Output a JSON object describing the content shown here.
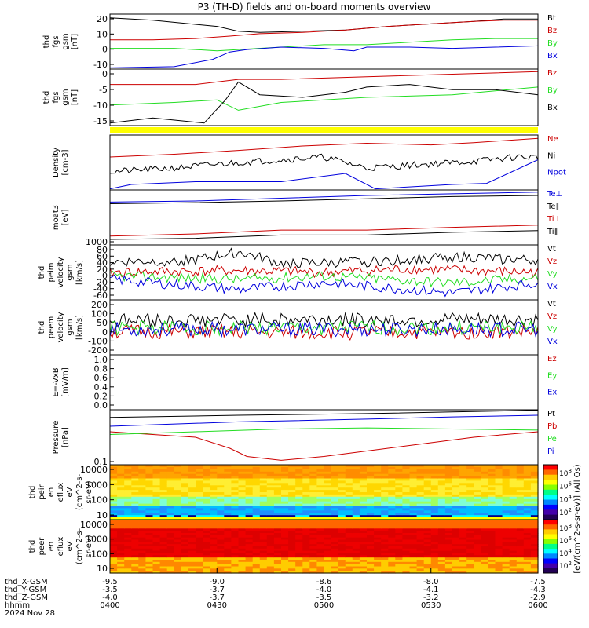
{
  "title": "P3 (TH-D) fields and on-board moments overview",
  "colors": {
    "black": "#000000",
    "red": "#cc0000",
    "green": "#22dd22",
    "blue": "#0000dd",
    "yellow": "#ffff00"
  },
  "chart_data": [
    {
      "type": "line",
      "ylabel": [
        "thd",
        "fgs",
        "gsm",
        "[nT]"
      ],
      "yticks": [
        "20",
        "10",
        "0",
        "-10"
      ],
      "ylim": [
        -20,
        25
      ],
      "series": [
        {
          "name": "Bt",
          "color": "black",
          "path": [
            [
              0,
              22
            ],
            [
              0.1,
              20
            ],
            [
              0.25,
              15
            ],
            [
              0.3,
              11
            ],
            [
              0.35,
              10
            ],
            [
              0.45,
              11
            ],
            [
              0.55,
              12
            ],
            [
              0.65,
              15
            ],
            [
              0.75,
              17
            ],
            [
              0.85,
              19
            ],
            [
              0.92,
              21
            ],
            [
              1,
              21
            ]
          ]
        },
        {
          "name": "Bz",
          "color": "red",
          "path": [
            [
              0,
              4
            ],
            [
              0.1,
              4
            ],
            [
              0.2,
              5
            ],
            [
              0.28,
              7
            ],
            [
              0.35,
              9
            ],
            [
              0.45,
              10
            ],
            [
              0.55,
              12
            ],
            [
              0.65,
              15
            ],
            [
              0.75,
              17
            ],
            [
              0.85,
              19
            ],
            [
              0.92,
              20
            ],
            [
              1,
              20
            ]
          ]
        },
        {
          "name": "By",
          "color": "green",
          "path": [
            [
              0,
              -3
            ],
            [
              0.15,
              -3
            ],
            [
              0.25,
              -5
            ],
            [
              0.3,
              -4
            ],
            [
              0.4,
              -2
            ],
            [
              0.5,
              0
            ],
            [
              0.6,
              0
            ],
            [
              0.7,
              2
            ],
            [
              0.8,
              4
            ],
            [
              0.9,
              5
            ],
            [
              1,
              5
            ]
          ]
        },
        {
          "name": "Bx",
          "color": "blue",
          "path": [
            [
              0,
              -19
            ],
            [
              0.15,
              -18
            ],
            [
              0.24,
              -12
            ],
            [
              0.28,
              -6
            ],
            [
              0.32,
              -4
            ],
            [
              0.4,
              -2
            ],
            [
              0.5,
              -3
            ],
            [
              0.57,
              -5
            ],
            [
              0.6,
              -2
            ],
            [
              0.7,
              -2
            ],
            [
              0.8,
              -3
            ],
            [
              0.9,
              -2
            ],
            [
              1,
              -1
            ]
          ]
        }
      ]
    },
    {
      "type": "line",
      "ylabel": [
        "thd",
        "fgs",
        "gsm",
        "[nT]"
      ],
      "yticks": [
        "0",
        "-5",
        "-10",
        "-15"
      ],
      "ylim": [
        -20,
        2
      ],
      "series": [
        {
          "name": "Bz",
          "color": "red",
          "path": [
            [
              0,
              -4
            ],
            [
              0.2,
              -4
            ],
            [
              0.3,
              -2
            ],
            [
              0.4,
              -2
            ],
            [
              0.6,
              -1
            ],
            [
              0.8,
              0
            ],
            [
              1,
              1
            ]
          ]
        },
        {
          "name": "By",
          "color": "green",
          "path": [
            [
              0,
              -12
            ],
            [
              0.15,
              -11
            ],
            [
              0.25,
              -10
            ],
            [
              0.3,
              -14
            ],
            [
              0.4,
              -11
            ],
            [
              0.6,
              -9
            ],
            [
              0.8,
              -8
            ],
            [
              1,
              -5
            ]
          ]
        },
        {
          "name": "Bx",
          "color": "black",
          "path": [
            [
              0,
              -19
            ],
            [
              0.1,
              -17
            ],
            [
              0.22,
              -19
            ],
            [
              0.27,
              -10
            ],
            [
              0.3,
              -3
            ],
            [
              0.35,
              -8
            ],
            [
              0.45,
              -9
            ],
            [
              0.55,
              -7
            ],
            [
              0.6,
              -5
            ],
            [
              0.7,
              -4
            ],
            [
              0.8,
              -6
            ],
            [
              0.9,
              -6
            ],
            [
              1,
              -8
            ]
          ]
        }
      ]
    },
    {
      "type": "line",
      "ylabel": [
        "Density",
        "[cm-3]"
      ],
      "yticks": [],
      "ylim": [
        0,
        10
      ],
      "series": [
        {
          "name": "Ne",
          "color": "red",
          "path": [
            [
              0,
              6
            ],
            [
              0.15,
              6.5
            ],
            [
              0.3,
              7.2
            ],
            [
              0.45,
              8
            ],
            [
              0.6,
              8.5
            ],
            [
              0.75,
              8.2
            ],
            [
              0.85,
              8.6
            ],
            [
              1,
              9.4
            ]
          ]
        },
        {
          "name": "Ni",
          "color": "black",
          "path": [
            [
              0,
              3.3
            ],
            [
              0.15,
              4
            ],
            [
              0.3,
              5
            ],
            [
              0.4,
              5.5
            ],
            [
              0.5,
              6
            ],
            [
              0.6,
              4
            ],
            [
              0.7,
              4.5
            ],
            [
              0.85,
              5.2
            ],
            [
              0.95,
              6
            ],
            [
              1,
              6
            ]
          ]
        },
        {
          "name": "Npot",
          "color": "blue",
          "path": [
            [
              0,
              0.2
            ],
            [
              0.05,
              1
            ],
            [
              0.2,
              1.5
            ],
            [
              0.4,
              1.5
            ],
            [
              0.55,
              3
            ],
            [
              0.62,
              0.2
            ],
            [
              0.8,
              1
            ],
            [
              0.88,
              1.2
            ],
            [
              1,
              5.5
            ]
          ]
        }
      ]
    },
    {
      "type": "line",
      "ylabel": [
        "moat3",
        "[eV]"
      ],
      "yticks": [
        "1000"
      ],
      "ylim": [
        0,
        10
      ],
      "series": [
        {
          "name": "Te⊥",
          "color": "blue",
          "path": [
            [
              0,
              7.8
            ],
            [
              0.2,
              8.0
            ],
            [
              0.4,
              8.5
            ],
            [
              0.6,
              9.0
            ],
            [
              0.8,
              9.3
            ],
            [
              1,
              9.6
            ]
          ]
        },
        {
          "name": "Te∥",
          "color": "black",
          "path": [
            [
              0,
              7.5
            ],
            [
              0.2,
              7.7
            ],
            [
              0.4,
              8.0
            ],
            [
              0.6,
              8.4
            ],
            [
              0.8,
              8.8
            ],
            [
              1,
              9.0
            ]
          ]
        },
        {
          "name": "Ti⊥",
          "color": "red",
          "path": [
            [
              0,
              1.6
            ],
            [
              0.2,
              2.0
            ],
            [
              0.4,
              2.7
            ],
            [
              0.6,
              2.7
            ],
            [
              0.8,
              3.2
            ],
            [
              1,
              3.6
            ]
          ]
        },
        {
          "name": "Ti∥",
          "color": "black",
          "path": [
            [
              0,
              1.0
            ],
            [
              0.2,
              1.2
            ],
            [
              0.4,
              1.8
            ],
            [
              0.6,
              1.8
            ],
            [
              0.8,
              2.3
            ],
            [
              1,
              2.6
            ]
          ]
        }
      ]
    },
    {
      "type": "line",
      "ylabel": [
        "thd",
        "peim",
        "velocity",
        "gsm",
        "[km/s]"
      ],
      "yticks": [
        "80",
        "60",
        "40",
        "20",
        "0",
        "-20",
        "-40",
        "-60"
      ],
      "ylim": [
        -70,
        90
      ],
      "series": [
        {
          "name": "Vt",
          "color": "black",
          "path": [
            [
              0,
              40
            ],
            [
              0.2,
              45
            ],
            [
              0.3,
              70
            ],
            [
              0.4,
              35
            ],
            [
              0.6,
              40
            ],
            [
              0.8,
              55
            ],
            [
              1,
              45
            ]
          ]
        },
        {
          "name": "Vz",
          "color": "red",
          "path": [
            [
              0,
              10
            ],
            [
              0.3,
              15
            ],
            [
              0.5,
              10
            ],
            [
              0.7,
              20
            ],
            [
              1,
              10
            ]
          ]
        },
        {
          "name": "Vy",
          "color": "green",
          "path": [
            [
              0,
              0
            ],
            [
              0.3,
              -10
            ],
            [
              0.5,
              0
            ],
            [
              0.8,
              -20
            ],
            [
              1,
              -5
            ]
          ]
        },
        {
          "name": "Vx",
          "color": "blue",
          "path": [
            [
              0,
              -10
            ],
            [
              0.3,
              -40
            ],
            [
              0.5,
              -20
            ],
            [
              0.8,
              -50
            ],
            [
              1,
              -20
            ]
          ]
        }
      ]
    },
    {
      "type": "line",
      "ylabel": [
        "thd",
        "peem",
        "velocity",
        "gsm",
        "[km/s]"
      ],
      "yticks": [
        "200",
        "100",
        "50",
        "0",
        "-100",
        "-200"
      ],
      "ylim": [
        -220,
        230
      ],
      "series": [
        {
          "name": "Vt",
          "color": "black",
          "path": [
            [
              0,
              60
            ],
            [
              0.5,
              70
            ],
            [
              1,
              60
            ]
          ]
        },
        {
          "name": "Vz",
          "color": "red",
          "path": [
            [
              0,
              -30
            ],
            [
              0.5,
              -40
            ],
            [
              1,
              -30
            ]
          ]
        },
        {
          "name": "Vy",
          "color": "green",
          "path": [
            [
              0,
              0
            ],
            [
              1,
              0
            ]
          ]
        },
        {
          "name": "Vx",
          "color": "blue",
          "path": [
            [
              0,
              -10
            ],
            [
              1,
              -10
            ]
          ]
        }
      ]
    },
    {
      "type": "line",
      "ylabel": [
        "E=-VxB",
        "[mV/m]"
      ],
      "yticks": [
        "1.0",
        "0.8",
        "0.6",
        "0.4",
        "0.2",
        "0.0"
      ],
      "ylim": [
        -0.1,
        1.0
      ],
      "series": [
        {
          "name": "Ez",
          "color": "red",
          "path": []
        },
        {
          "name": "Ey",
          "color": "green",
          "path": []
        },
        {
          "name": "Ex",
          "color": "blue",
          "path": []
        }
      ]
    },
    {
      "type": "line",
      "ylabel": [
        "Pressure",
        "[nPa]"
      ],
      "yticks": [
        "0.1"
      ],
      "ylim": [
        0,
        10
      ],
      "series": [
        {
          "name": "Pt",
          "color": "black",
          "path": [
            [
              0,
              8.6
            ],
            [
              0.3,
              9.0
            ],
            [
              0.6,
              9.3
            ],
            [
              0.8,
              9.6
            ],
            [
              1,
              9.9
            ]
          ]
        },
        {
          "name": "Pb",
          "color": "red",
          "path": [
            [
              0,
              6
            ],
            [
              0.2,
              5
            ],
            [
              0.28,
              3
            ],
            [
              0.32,
              1.5
            ],
            [
              0.4,
              0.8
            ],
            [
              0.5,
              1.5
            ],
            [
              0.6,
              2.5
            ],
            [
              0.7,
              3.5
            ],
            [
              0.85,
              5
            ],
            [
              1,
              6
            ]
          ]
        },
        {
          "name": "Pe",
          "color": "green",
          "path": [
            [
              0,
              5.5
            ],
            [
              0.2,
              6
            ],
            [
              0.4,
              6.5
            ],
            [
              0.6,
              6.7
            ],
            [
              0.8,
              6.5
            ],
            [
              1,
              6.3
            ]
          ]
        },
        {
          "name": "Pi",
          "color": "blue",
          "path": [
            [
              0,
              7
            ],
            [
              0.3,
              7.8
            ],
            [
              0.6,
              8.3
            ],
            [
              0.8,
              8.7
            ],
            [
              1,
              9
            ]
          ]
        }
      ]
    },
    {
      "type": "heatmap",
      "ylabel": [
        "thd",
        "peir",
        "en",
        "eflux",
        "eV",
        "(cm^2-s-",
        "sr-eV)"
      ],
      "yticks": [
        "10000",
        "1000",
        "100",
        "10"
      ]
    },
    {
      "type": "heatmap",
      "ylabel": [
        "thd",
        "peer",
        "en",
        "eflux",
        "eV",
        "(cm^2-s-",
        "sr-eV)"
      ],
      "yticks": [
        "10000",
        "1000",
        "100",
        "10"
      ]
    }
  ],
  "colorbar": {
    "label": "[eV/(cm^2-s-sr-eV)] (All Qs)",
    "upper_ticks": [
      "10^8",
      "10^6",
      "10^4",
      "10^2"
    ],
    "lower_ticks": [
      "10^8",
      "10^6",
      "10^4",
      "10^2"
    ]
  },
  "xaxis": {
    "row_labels": [
      "thd_X-GSM",
      "thd_Y-GSM",
      "thd_Z-GSM",
      "hhmm",
      "2024 Nov 28"
    ],
    "ticks": [
      {
        "frac": 0.0,
        "vals": [
          "-9.5",
          "-3.5",
          "-4.0",
          "0400"
        ]
      },
      {
        "frac": 0.2,
        "vals": [
          "-9.0",
          "-3.7",
          "-3.7",
          "0430"
        ]
      },
      {
        "frac": 0.4,
        "vals": [
          "-8.6",
          "-4.0",
          "-3.5",
          "0500"
        ]
      },
      {
        "frac": 0.6,
        "vals": [
          "-8.0",
          "-4.1",
          "-3.2",
          "0530"
        ]
      },
      {
        "frac": 0.8,
        "vals": [
          "-7.5",
          "-4.3",
          "-2.9",
          "0600"
        ]
      }
    ]
  }
}
